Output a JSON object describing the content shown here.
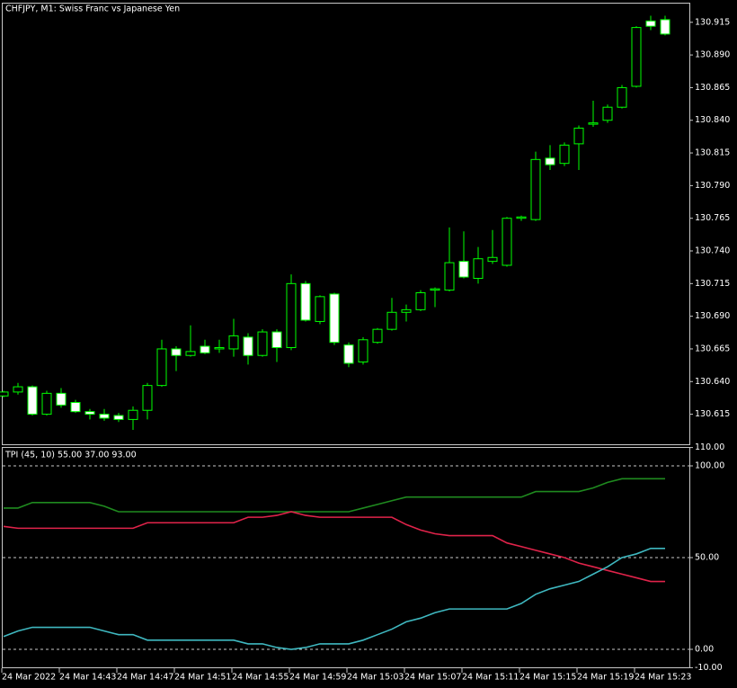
{
  "chart_data": [
    {
      "type": "candlestick",
      "title": "CHFJPY, M1:  Swiss Franc vs Japanese Yen",
      "categories": [
        "24 Mar 2022",
        null,
        null,
        null,
        "24 Mar 14:43",
        null,
        null,
        null,
        "24 Mar 14:47",
        null,
        null,
        null,
        "24 Mar 14:51",
        null,
        null,
        null,
        "24 Mar 14:55",
        null,
        null,
        null,
        "24 Mar 14:59",
        null,
        null,
        null,
        "24 Mar 15:03",
        null,
        null,
        null,
        "24 Mar 15:07",
        null,
        null,
        null,
        "24 Mar 15:11",
        null,
        null,
        null,
        "24 Mar 15:15",
        null,
        null,
        null,
        "24 Mar 15:19",
        null,
        null,
        null,
        "24 Mar 15:23",
        null,
        null
      ],
      "open": [
        130.629,
        130.632,
        130.636,
        130.615,
        130.631,
        130.624,
        130.617,
        130.615,
        130.614,
        130.611,
        130.618,
        130.637,
        130.665,
        130.66,
        130.667,
        130.665,
        130.665,
        130.674,
        130.66,
        130.678,
        130.666,
        130.715,
        130.686,
        130.707,
        130.668,
        130.655,
        130.67,
        130.68,
        130.693,
        130.695,
        130.71,
        130.71,
        130.732,
        130.719,
        130.732,
        130.729,
        130.765,
        130.764,
        130.811,
        130.807,
        130.822,
        130.837,
        130.84,
        130.85,
        130.866,
        130.916,
        130.917
      ],
      "high": [
        130.633,
        130.639,
        130.637,
        130.633,
        130.635,
        130.626,
        130.619,
        130.619,
        130.616,
        130.621,
        130.639,
        130.672,
        130.667,
        130.683,
        130.672,
        130.672,
        130.688,
        130.677,
        130.68,
        130.68,
        130.722,
        130.717,
        130.706,
        130.708,
        130.67,
        130.674,
        130.681,
        130.704,
        130.699,
        130.71,
        130.712,
        130.758,
        130.755,
        130.743,
        130.756,
        130.766,
        130.767,
        130.816,
        130.821,
        130.823,
        130.836,
        130.855,
        130.852,
        130.867,
        130.912,
        130.92,
        130.92
      ],
      "low": [
        130.628,
        130.63,
        130.614,
        130.614,
        130.62,
        130.616,
        130.611,
        130.61,
        130.609,
        130.603,
        130.611,
        130.636,
        130.648,
        130.659,
        130.661,
        130.662,
        130.659,
        130.653,
        130.659,
        130.655,
        130.664,
        130.686,
        130.684,
        130.668,
        130.651,
        130.653,
        130.669,
        130.679,
        130.686,
        130.694,
        130.697,
        130.709,
        130.719,
        130.715,
        130.73,
        130.728,
        130.763,
        130.763,
        130.802,
        130.805,
        130.802,
        130.835,
        130.838,
        130.849,
        130.865,
        130.909,
        130.905
      ],
      "close": [
        130.632,
        130.636,
        130.615,
        130.631,
        130.622,
        130.617,
        130.615,
        130.612,
        130.611,
        130.618,
        130.637,
        130.665,
        130.66,
        130.663,
        130.662,
        130.666,
        130.675,
        130.66,
        130.678,
        130.666,
        130.715,
        130.687,
        130.705,
        130.67,
        130.654,
        130.672,
        130.68,
        130.693,
        130.695,
        130.708,
        130.711,
        130.731,
        130.72,
        130.734,
        130.735,
        130.765,
        130.766,
        130.81,
        130.806,
        130.821,
        130.834,
        130.838,
        130.85,
        130.865,
        130.911,
        130.912,
        130.906
      ],
      "up_color": "#00ff00",
      "down_color": "#ffffff",
      "ylim": [
        130.592,
        130.93
      ],
      "yticks": [
        130.915,
        {
          "value": 130.89,
          "label": "130.890"
        },
        130.865,
        {
          "value": 130.84,
          "label": "130.840"
        },
        130.815,
        {
          "value": 130.79,
          "label": "130.790"
        },
        130.765,
        {
          "value": 130.74,
          "label": "130.740"
        },
        130.715,
        {
          "value": 130.69,
          "label": "130.690"
        },
        130.665,
        {
          "value": 130.64,
          "label": "130.640"
        },
        130.615
      ]
    },
    {
      "type": "line",
      "title": "TPI (45, 10) 55.00 37.00 93.00",
      "series": [
        {
          "color": "#1f8a1f",
          "values": [
            77,
            77,
            80,
            80,
            80,
            80,
            80,
            78,
            75,
            75,
            75,
            75,
            75,
            75,
            75,
            75,
            75,
            75,
            75,
            75,
            75,
            75,
            75,
            75,
            75,
            77,
            79,
            81,
            83,
            83,
            83,
            83,
            83,
            83,
            83,
            83,
            83,
            86,
            86,
            86,
            86,
            88,
            91,
            93,
            93,
            93,
            93
          ]
        },
        {
          "color": "#e0234a",
          "values": [
            67,
            66,
            66,
            66,
            66,
            66,
            66,
            66,
            66,
            66,
            69,
            69,
            69,
            69,
            69,
            69,
            69,
            72,
            72,
            73,
            75,
            73,
            72,
            72,
            72,
            72,
            72,
            72,
            68,
            65,
            63,
            62,
            62,
            62,
            62,
            58,
            56,
            54,
            52,
            50,
            47,
            45,
            43,
            41,
            39,
            37,
            37
          ]
        },
        {
          "color": "#3fb8c0",
          "values": [
            7,
            10,
            12,
            12,
            12,
            12,
            12,
            10,
            8,
            8,
            5,
            5,
            5,
            5,
            5,
            5,
            5,
            3,
            3,
            1,
            0,
            1,
            3,
            3,
            3,
            5,
            8,
            11,
            15,
            17,
            20,
            22,
            22,
            22,
            22,
            22,
            25,
            30,
            33,
            35,
            37,
            41,
            45,
            50,
            52,
            55,
            55
          ]
        }
      ],
      "ylim": [
        -9.8,
        110.3
      ],
      "yticks": [
        {
          "value": 110,
          "label": "110.00"
        },
        {
          "value": 100,
          "label": "100.00"
        },
        {
          "value": 50,
          "label": "50.00"
        },
        {
          "value": 0,
          "label": "0.00"
        },
        {
          "value": -10,
          "label": "-10.00"
        }
      ],
      "levels": [
        100,
        50,
        0
      ]
    }
  ]
}
